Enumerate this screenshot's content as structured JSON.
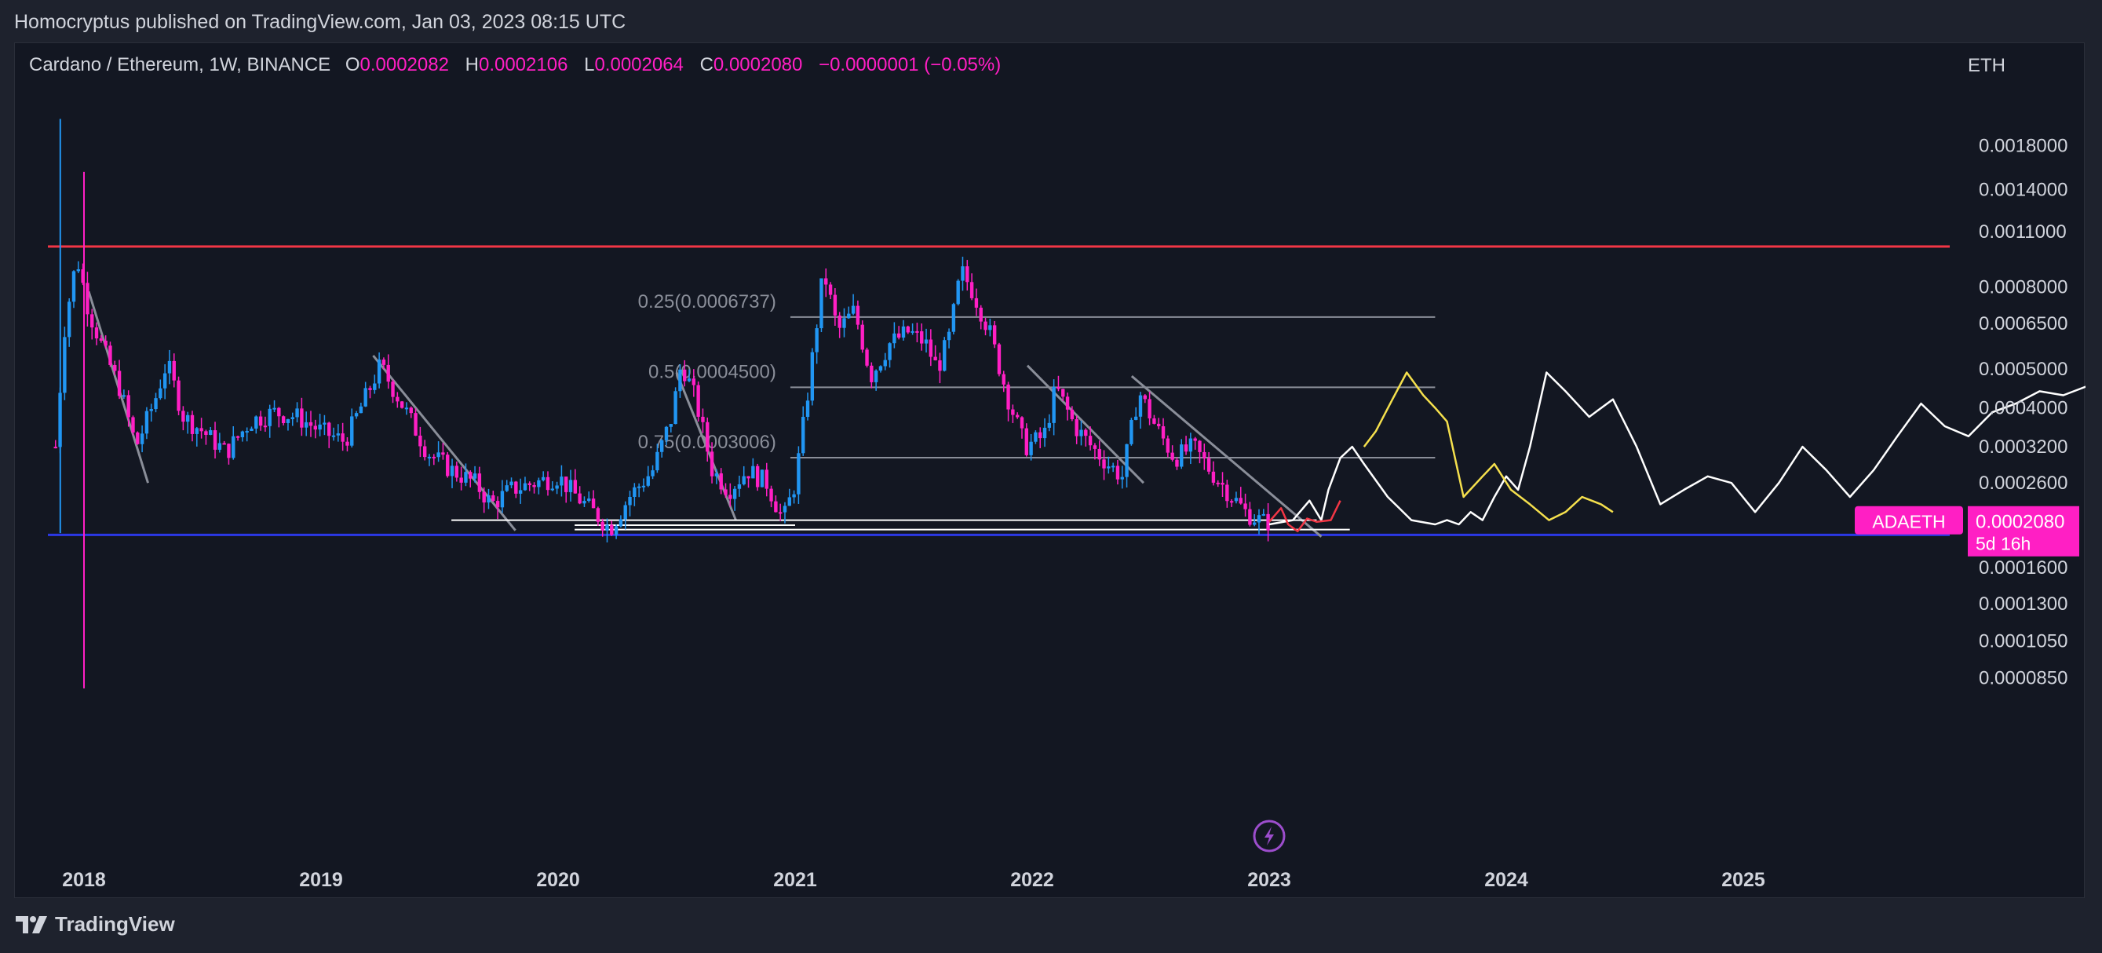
{
  "header": {
    "published": "Homocryptus published on TradingView.com, Jan 03, 2023 08:15 UTC"
  },
  "legend": {
    "symbol": "Cardano / Ethereum, 1W, BINANCE",
    "o_label": "O",
    "o": "0.0002082",
    "h_label": "H",
    "h": "0.0002106",
    "l_label": "L",
    "l": "0.0002064",
    "c_label": "C",
    "c": "0.0002080",
    "change": "−0.0000001 (−0.05%)"
  },
  "footer": {
    "brand": "TradingView"
  },
  "colors": {
    "background": "#131722",
    "frame": "#1e222d",
    "up": "#2196f3",
    "down": "#ff1fc4",
    "resistance": "#f23645",
    "support": "#2b38e6",
    "projection_yellow": "#f5e04d",
    "projection_white": "#ffffff"
  },
  "chart_data": {
    "type": "candlestick",
    "pair": "ADAETH",
    "axis_unit": "ETH",
    "y_scale": "log",
    "ylim": [
      7.5e-05,
      0.0023
    ],
    "x_tick_labels": [
      "2018",
      "2019",
      "2020",
      "2021",
      "2022",
      "2023",
      "2024",
      "2025"
    ],
    "y_tick_labels": [
      "0.0018000",
      "0.0014000",
      "0.0011000",
      "0.0008000",
      "0.0006500",
      "0.0005000",
      "0.0004000",
      "0.0003200",
      "0.0002600",
      "0.0001600",
      "0.0001300",
      "0.0001050",
      "0.0000850"
    ],
    "last_price": {
      "label": "ADAETH",
      "value": "0.0002080",
      "countdown": "5d 16h"
    },
    "horizontal_levels": [
      {
        "name": "resistance",
        "value": 0.00101,
        "color": "#f23645"
      },
      {
        "name": "support",
        "value": 0.000193,
        "color": "#2b38e6"
      }
    ],
    "fib_levels": [
      {
        "label": "0.25(0.0006737)",
        "value": 0.0006737
      },
      {
        "label": "0.5(0.0004500)",
        "value": 0.00045
      },
      {
        "label": "0.75(0.0003006)",
        "value": 0.0003006
      }
    ],
    "price_path": [
      [
        2017.88,
        0.00032
      ],
      [
        2017.92,
        0.00065
      ],
      [
        2017.97,
        0.00095
      ],
      [
        2018.02,
        0.0007
      ],
      [
        2018.08,
        0.00056
      ],
      [
        2018.15,
        0.00045
      ],
      [
        2018.22,
        0.00032
      ],
      [
        2018.3,
        0.00042
      ],
      [
        2018.35,
        0.00052
      ],
      [
        2018.42,
        0.00038
      ],
      [
        2018.5,
        0.00035
      ],
      [
        2018.6,
        0.00031
      ],
      [
        2018.7,
        0.00037
      ],
      [
        2018.8,
        0.00039
      ],
      [
        2018.9,
        0.00038
      ],
      [
        2019.0,
        0.00035
      ],
      [
        2019.1,
        0.00033
      ],
      [
        2019.2,
        0.00044
      ],
      [
        2019.25,
        0.00051
      ],
      [
        2019.35,
        0.0004
      ],
      [
        2019.45,
        0.00031
      ],
      [
        2019.55,
        0.00028
      ],
      [
        2019.65,
        0.00026
      ],
      [
        2019.72,
        0.00023
      ],
      [
        2019.8,
        0.00025
      ],
      [
        2019.9,
        0.00026
      ],
      [
        2020.0,
        0.00027
      ],
      [
        2020.08,
        0.00024
      ],
      [
        2020.15,
        0.00022
      ],
      [
        2020.22,
        0.0002
      ],
      [
        2020.3,
        0.00024
      ],
      [
        2020.4,
        0.00028
      ],
      [
        2020.48,
        0.00038
      ],
      [
        2020.52,
        0.00052
      ],
      [
        2020.58,
        0.00042
      ],
      [
        2020.65,
        0.00028
      ],
      [
        2020.72,
        0.00025
      ],
      [
        2020.8,
        0.00028
      ],
      [
        2020.88,
        0.00026
      ],
      [
        2020.95,
        0.00021
      ],
      [
        2021.0,
        0.00026
      ],
      [
        2021.05,
        0.00042
      ],
      [
        2021.12,
        0.00088
      ],
      [
        2021.18,
        0.00062
      ],
      [
        2021.25,
        0.0007
      ],
      [
        2021.32,
        0.00048
      ],
      [
        2021.4,
        0.00058
      ],
      [
        2021.48,
        0.00062
      ],
      [
        2021.55,
        0.00058
      ],
      [
        2021.6,
        0.0005
      ],
      [
        2021.65,
        0.0006
      ],
      [
        2021.7,
        0.00088
      ],
      [
        2021.75,
        0.00078
      ],
      [
        2021.82,
        0.00062
      ],
      [
        2021.9,
        0.00042
      ],
      [
        2021.97,
        0.00032
      ],
      [
        2022.05,
        0.00034
      ],
      [
        2022.1,
        0.00045
      ],
      [
        2022.18,
        0.00036
      ],
      [
        2022.25,
        0.00032
      ],
      [
        2022.32,
        0.00029
      ],
      [
        2022.38,
        0.00027
      ],
      [
        2022.45,
        0.00044
      ],
      [
        2022.52,
        0.00036
      ],
      [
        2022.6,
        0.0003
      ],
      [
        2022.68,
        0.00032
      ],
      [
        2022.75,
        0.00028
      ],
      [
        2022.82,
        0.00025
      ],
      [
        2022.9,
        0.00022
      ],
      [
        2022.97,
        0.000208
      ]
    ],
    "projection_red": [
      [
        2023.0,
        0.000208
      ],
      [
        2023.05,
        0.000225
      ],
      [
        2023.08,
        0.000205
      ],
      [
        2023.12,
        0.000197
      ],
      [
        2023.16,
        0.000212
      ],
      [
        2023.2,
        0.000208
      ],
      [
        2023.26,
        0.00021
      ],
      [
        2023.3,
        0.000235
      ]
    ],
    "projection_white_1": [
      [
        2023.0,
        0.000205
      ],
      [
        2023.1,
        0.00021
      ],
      [
        2023.17,
        0.000235
      ],
      [
        2023.22,
        0.00021
      ],
      [
        2023.25,
        0.00025
      ],
      [
        2023.3,
        0.0003
      ],
      [
        2023.35,
        0.00032
      ],
      [
        2023.4,
        0.00029
      ],
      [
        2023.5,
        0.00024
      ],
      [
        2023.6,
        0.00021
      ],
      [
        2023.7,
        0.000205
      ],
      [
        2023.75,
        0.00021
      ],
      [
        2023.8,
        0.000205
      ],
      [
        2023.85,
        0.00022
      ],
      [
        2023.9,
        0.00021
      ],
      [
        2023.95,
        0.00024
      ],
      [
        2024.0,
        0.00027
      ],
      [
        2024.05,
        0.00025
      ],
      [
        2024.1,
        0.00032
      ],
      [
        2024.17,
        0.00049
      ],
      [
        2024.25,
        0.00044
      ],
      [
        2024.35,
        0.00038
      ],
      [
        2024.45,
        0.00042
      ],
      [
        2024.55,
        0.00032
      ],
      [
        2024.65,
        0.00023
      ],
      [
        2024.75,
        0.00025
      ],
      [
        2024.85,
        0.00027
      ],
      [
        2024.95,
        0.00026
      ],
      [
        2025.05,
        0.00022
      ],
      [
        2025.15,
        0.00026
      ],
      [
        2025.25,
        0.00032
      ],
      [
        2025.35,
        0.00028
      ],
      [
        2025.45,
        0.00024
      ],
      [
        2025.55,
        0.00028
      ],
      [
        2025.65,
        0.00034
      ],
      [
        2025.75,
        0.00041
      ],
      [
        2025.85,
        0.00036
      ],
      [
        2025.95,
        0.00034
      ],
      [
        2026.05,
        0.00039
      ],
      [
        2026.15,
        0.00041
      ],
      [
        2026.25,
        0.00044
      ],
      [
        2026.35,
        0.00043
      ],
      [
        2026.48,
        0.00046
      ]
    ],
    "projection_yellow": [
      [
        2023.4,
        0.00032
      ],
      [
        2023.45,
        0.00035
      ],
      [
        2023.52,
        0.00042
      ],
      [
        2023.58,
        0.00049
      ],
      [
        2023.65,
        0.00043
      ],
      [
        2023.7,
        0.0004
      ],
      [
        2023.75,
        0.00037
      ],
      [
        2023.82,
        0.00024
      ],
      [
        2023.9,
        0.00027
      ],
      [
        2023.95,
        0.00029
      ],
      [
        2024.02,
        0.00025
      ],
      [
        2024.1,
        0.00023
      ],
      [
        2024.18,
        0.00021
      ],
      [
        2024.25,
        0.00022
      ],
      [
        2024.32,
        0.00024
      ],
      [
        2024.4,
        0.00023
      ],
      [
        2024.45,
        0.00022
      ]
    ]
  }
}
